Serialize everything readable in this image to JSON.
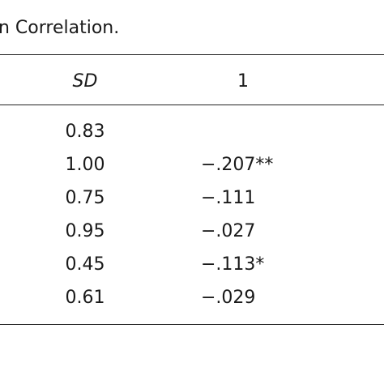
{
  "title": "n Correlation.",
  "table": {
    "header": {
      "sd": "SD",
      "c1": "1"
    },
    "rows": [
      {
        "sd": "0.83"
      },
      {
        "sd": "1.00",
        "c1": "−.207**"
      },
      {
        "sd": "0.75",
        "c1": "−.111"
      },
      {
        "sd": "0.95",
        "c1": "−.027"
      },
      {
        "sd": "0.45",
        "c1": "−.113*"
      },
      {
        "sd": "0.61",
        "c1": "−.029"
      }
    ]
  }
}
